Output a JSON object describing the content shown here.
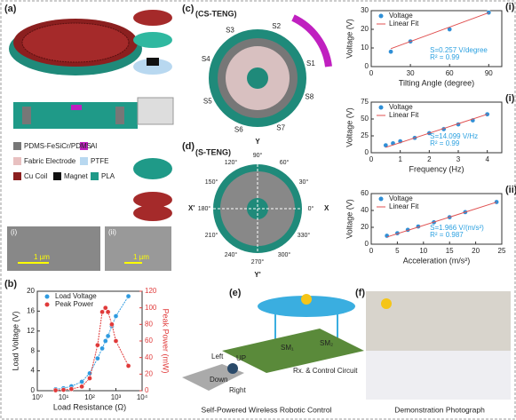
{
  "panels": {
    "a": {
      "label": "(a)",
      "legend": [
        "PDMS-FeSiCr/PDMS",
        "Al",
        "Fabric Electrode",
        "PTFE",
        "Cu Coil",
        "Magnet",
        "PLA"
      ],
      "sem": [
        {
          "label": "(i)",
          "scale": "1 µm"
        },
        {
          "label": "(ii)",
          "scale": "1 µm"
        }
      ]
    },
    "b": {
      "label": "(b)"
    },
    "c": {
      "label": "(c)",
      "title": "(CS-TENG)",
      "segments": [
        "S1",
        "S2",
        "S3",
        "S4",
        "S5",
        "S6",
        "S7",
        "S8"
      ]
    },
    "d": {
      "label": "(d)",
      "title": "(S-TENG)",
      "angles": [
        "0°",
        "30°",
        "60°",
        "90°",
        "120°",
        "150°",
        "180°",
        "210°",
        "240°",
        "270°",
        "300°",
        "330°"
      ],
      "axes": [
        "X",
        "Y",
        "X'",
        "Y'"
      ]
    },
    "e": {
      "label": "(e)",
      "switches": [
        "SM₁",
        "SM₂"
      ],
      "circuit": "Rx. & Control Circuit",
      "directions": [
        "Left",
        "UP",
        "Down",
        "Right"
      ],
      "caption": "Self-Powered Wireless Robotic Control"
    },
    "f": {
      "label": "(f)",
      "caption": "Demonstration Photograph"
    }
  },
  "chart_data": [
    {
      "type": "line",
      "xlabel": "Load  Resistance (Ω)",
      "ylabel": "Load Voltage (V)",
      "y2label": "Peak Power (mW)",
      "xscale": "log",
      "xlim": [
        1,
        10000
      ],
      "xticks": [
        {
          "value": 1,
          "label": "10⁰"
        },
        {
          "value": 10,
          "label": "10¹"
        },
        {
          "value": 100,
          "label": "10²"
        },
        {
          "value": 1000,
          "label": "10³"
        },
        {
          "value": 10000,
          "label": "10⁴"
        }
      ],
      "ylim": [
        0,
        20
      ],
      "yticks": [
        0,
        4,
        8,
        12,
        16,
        20
      ],
      "y2lim": [
        0,
        120
      ],
      "y2ticks": [
        0,
        20,
        40,
        60,
        80,
        100,
        120
      ],
      "legend": "upper left",
      "series": [
        {
          "name": "Load Voltage",
          "color": "#2f9be0",
          "x": [
            5,
            10,
            20,
            50,
            100,
            200,
            300,
            400,
            500,
            700,
            1000,
            3000
          ],
          "values": [
            0.3,
            0.5,
            0.9,
            1.8,
            3.5,
            6.5,
            8.5,
            10,
            11,
            13,
            15,
            19
          ]
        },
        {
          "name": "Peak Power",
          "color": "#e03a3a",
          "axis": "y2",
          "x": [
            5,
            10,
            20,
            50,
            100,
            200,
            300,
            400,
            500,
            700,
            1000,
            3000
          ],
          "values": [
            0.5,
            1,
            2,
            5,
            15,
            55,
            95,
            100,
            95,
            80,
            60,
            30
          ]
        }
      ]
    },
    {
      "type": "scatter",
      "label": "(i)",
      "xlabel": "Tilting Angle (degree)",
      "ylabel": "Voltage (V)",
      "xlim": [
        0,
        100
      ],
      "xticks": [
        0,
        30,
        60,
        90
      ],
      "ylim": [
        0,
        30
      ],
      "yticks": [
        0,
        10,
        20,
        30
      ],
      "legend": "upper left",
      "annotations": [
        "S=0.257 V/degree",
        "R² = 0.99"
      ],
      "annotation_color": "#2aa0e0",
      "series": [
        {
          "name": "Voltage",
          "color": "#2f8fd6",
          "kind": "points",
          "x": [
            15,
            30,
            60,
            90
          ],
          "values": [
            8,
            13.5,
            20,
            29
          ]
        },
        {
          "name": "Linear Fit",
          "color": "#e05050",
          "kind": "line",
          "x": [
            15,
            90
          ],
          "values": [
            9.6,
            28.9
          ]
        }
      ]
    },
    {
      "type": "scatter",
      "label": "(i)",
      "xlabel": "Frequency (Hz)",
      "ylabel": "Voltage (V)",
      "xlim": [
        0,
        4.5
      ],
      "xticks": [
        0,
        1,
        2,
        3,
        4
      ],
      "ylim": [
        0,
        75
      ],
      "yticks": [
        0,
        25,
        50,
        75
      ],
      "legend": "upper left",
      "annotations": [
        "S=14.099 V/Hz",
        "R² = 0.99"
      ],
      "annotation_color": "#2aa0e0",
      "series": [
        {
          "name": "Voltage",
          "color": "#2f8fd6",
          "kind": "points",
          "x": [
            0.5,
            0.75,
            1,
            1.5,
            2,
            2.5,
            3,
            3.5,
            4
          ],
          "values": [
            11,
            14,
            17,
            22,
            29,
            35,
            42,
            48,
            57
          ]
        },
        {
          "name": "Linear Fit",
          "color": "#e05050",
          "kind": "line",
          "x": [
            0.5,
            4
          ],
          "values": [
            8,
            57
          ]
        }
      ]
    },
    {
      "type": "scatter",
      "label": "(ii)",
      "xlabel": "Acceleration (m/s²)",
      "ylabel": "Voltage (V)",
      "xlim": [
        0,
        25
      ],
      "xticks": [
        0,
        5,
        10,
        15,
        20,
        25
      ],
      "ylim": [
        0,
        60
      ],
      "yticks": [
        0,
        20,
        40,
        60
      ],
      "legend": "upper left",
      "annotations": [
        "S=1.966 V/(m/s²)",
        "R² = 0.987"
      ],
      "annotation_color": "#2aa0e0",
      "series": [
        {
          "name": "Voltage",
          "color": "#2f8fd6",
          "kind": "points",
          "x": [
            3,
            5,
            7,
            9,
            12,
            15,
            18,
            24
          ],
          "values": [
            10,
            13,
            17,
            21,
            26,
            32,
            38,
            50
          ]
        },
        {
          "name": "Linear Fit",
          "color": "#e05050",
          "kind": "line",
          "x": [
            3,
            24
          ],
          "values": [
            8.5,
            49.8
          ]
        }
      ]
    }
  ]
}
